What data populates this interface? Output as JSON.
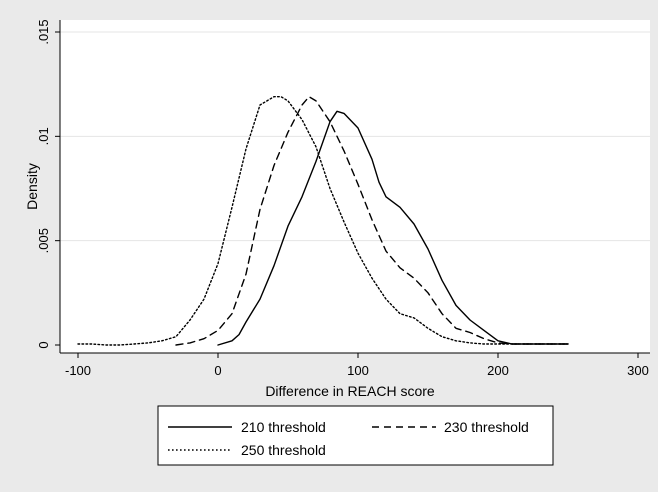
{
  "chart_data": {
    "type": "line",
    "title": "",
    "xlabel": "Difference in REACH score",
    "ylabel": "Density",
    "xlim": [
      -110,
      310
    ],
    "ylim": [
      0,
      0.0152
    ],
    "xticks": [
      -100,
      0,
      100,
      200,
      300
    ],
    "xtick_labels": [
      "-100",
      "0",
      "100",
      "200",
      "300"
    ],
    "yticks": [
      0,
      0.005,
      0.01,
      0.015
    ],
    "ytick_labels": [
      "0",
      ".005",
      ".01",
      ".015"
    ],
    "grid": "horizontal",
    "legend_position": "bottom",
    "series": [
      {
        "name": "210 threshold",
        "dash": "solid",
        "color": "#000000",
        "points": [
          [
            0,
            0
          ],
          [
            10,
            0.0002
          ],
          [
            15,
            0.0005
          ],
          [
            20,
            0.0011
          ],
          [
            30,
            0.0022
          ],
          [
            40,
            0.0038
          ],
          [
            50,
            0.0057
          ],
          [
            60,
            0.0071
          ],
          [
            70,
            0.0088
          ],
          [
            80,
            0.0107
          ],
          [
            85,
            0.0112
          ],
          [
            90,
            0.0111
          ],
          [
            100,
            0.0104
          ],
          [
            110,
            0.0089
          ],
          [
            115,
            0.0078
          ],
          [
            120,
            0.0071
          ],
          [
            130,
            0.0066
          ],
          [
            140,
            0.0058
          ],
          [
            150,
            0.0046
          ],
          [
            160,
            0.0031
          ],
          [
            170,
            0.0019
          ],
          [
            180,
            0.0012
          ],
          [
            190,
            0.0007
          ],
          [
            200,
            0.0002
          ],
          [
            210,
            5e-05
          ],
          [
            220,
            5e-05
          ],
          [
            230,
            5e-05
          ],
          [
            240,
            5e-05
          ],
          [
            250,
            5e-05
          ]
        ]
      },
      {
        "name": "230 threshold",
        "dash": "dashed",
        "color": "#000000",
        "points": [
          [
            -30,
            0
          ],
          [
            -20,
            0.0001
          ],
          [
            -10,
            0.0003
          ],
          [
            0,
            0.0007
          ],
          [
            10,
            0.0015
          ],
          [
            20,
            0.0034
          ],
          [
            30,
            0.0065
          ],
          [
            40,
            0.0086
          ],
          [
            50,
            0.0102
          ],
          [
            60,
            0.0115
          ],
          [
            65,
            0.0119
          ],
          [
            70,
            0.0117
          ],
          [
            80,
            0.0107
          ],
          [
            90,
            0.0093
          ],
          [
            100,
            0.0077
          ],
          [
            110,
            0.006
          ],
          [
            120,
            0.0045
          ],
          [
            130,
            0.0037
          ],
          [
            140,
            0.0032
          ],
          [
            150,
            0.0025
          ],
          [
            160,
            0.0015
          ],
          [
            170,
            0.0008
          ],
          [
            180,
            0.0006
          ],
          [
            190,
            0.0003
          ],
          [
            200,
            0.0001
          ],
          [
            210,
            5e-05
          ],
          [
            220,
            5e-05
          ],
          [
            230,
            5e-05
          ],
          [
            240,
            5e-05
          ],
          [
            250,
            5e-05
          ]
        ]
      },
      {
        "name": "250 threshold",
        "dash": "dotted",
        "color": "#000000",
        "points": [
          [
            -100,
            5e-05
          ],
          [
            -90,
            5e-05
          ],
          [
            -80,
            0
          ],
          [
            -70,
            0
          ],
          [
            -60,
            5e-05
          ],
          [
            -50,
            0.0001
          ],
          [
            -40,
            0.0002
          ],
          [
            -30,
            0.0004
          ],
          [
            -20,
            0.0012
          ],
          [
            -10,
            0.0022
          ],
          [
            0,
            0.0039
          ],
          [
            10,
            0.0066
          ],
          [
            20,
            0.0094
          ],
          [
            30,
            0.0115
          ],
          [
            40,
            0.0119
          ],
          [
            45,
            0.0119
          ],
          [
            50,
            0.0117
          ],
          [
            60,
            0.0108
          ],
          [
            70,
            0.0095
          ],
          [
            80,
            0.0075
          ],
          [
            90,
            0.0059
          ],
          [
            100,
            0.0044
          ],
          [
            110,
            0.0032
          ],
          [
            120,
            0.0022
          ],
          [
            130,
            0.0015
          ],
          [
            140,
            0.0013
          ],
          [
            150,
            0.0008
          ],
          [
            160,
            0.0004
          ],
          [
            170,
            0.0002
          ],
          [
            180,
            0.0001
          ],
          [
            190,
            5e-05
          ],
          [
            200,
            5e-05
          ],
          [
            210,
            5e-05
          ],
          [
            220,
            5e-05
          ],
          [
            230,
            5e-05
          ],
          [
            240,
            5e-05
          ],
          [
            250,
            5e-05
          ]
        ]
      }
    ]
  }
}
